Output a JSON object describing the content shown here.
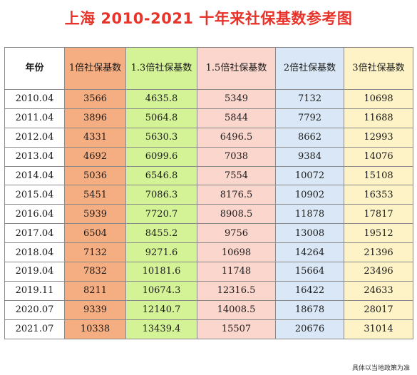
{
  "title": "上海 2010-2021 十年来社保基数参考图",
  "headers": [
    "年份",
    "1倍社保基数",
    "1.3倍社保基数",
    "1.5倍社保基数",
    "2倍社保基数",
    "3倍社保基数"
  ],
  "rows": [
    [
      "2010.04",
      "3566",
      "4635.8",
      "5349",
      "7132",
      "10698"
    ],
    [
      "2011.04",
      "3896",
      "5064.8",
      "5844",
      "7792",
      "11688"
    ],
    [
      "2012.04",
      "4331",
      "5630.3",
      "6496.5",
      "8662",
      "12993"
    ],
    [
      "2013.04",
      "4692",
      "6099.6",
      "7038",
      "9384",
      "14076"
    ],
    [
      "2014.04",
      "5036",
      "6546.8",
      "7554",
      "10072",
      "15108"
    ],
    [
      "2015.04",
      "5451",
      "7086.3",
      "8176.5",
      "10902",
      "16353"
    ],
    [
      "2016.04",
      "5939",
      "7720.7",
      "8908.5",
      "11878",
      "17817"
    ],
    [
      "2017.04",
      "6504",
      "8455.2",
      "9756",
      "13008",
      "19512"
    ],
    [
      "2018.04",
      "7132",
      "9271.6",
      "10698",
      "14264",
      "21396"
    ],
    [
      "2019.04",
      "7832",
      "10181.6",
      "11748",
      "15664",
      "23496"
    ],
    [
      "2019.11",
      "8211",
      "10674.3",
      "12316.5",
      "16422",
      "24633"
    ],
    [
      "2020.07",
      "9339",
      "12140.7",
      "14008.5",
      "18678",
      "28017"
    ],
    [
      "2021.07",
      "10338",
      "13439.4",
      "15507",
      "20676",
      "31014"
    ]
  ],
  "note": "具体以当地政策为准",
  "colors": {
    "title": "#e8332a",
    "col_1x": "#f5ae82",
    "col_1_3x": "#d4f396",
    "col_1_5x": "#fbd6cd",
    "col_2x": "#d9e7f7",
    "col_3x": "#fdf3c6"
  }
}
